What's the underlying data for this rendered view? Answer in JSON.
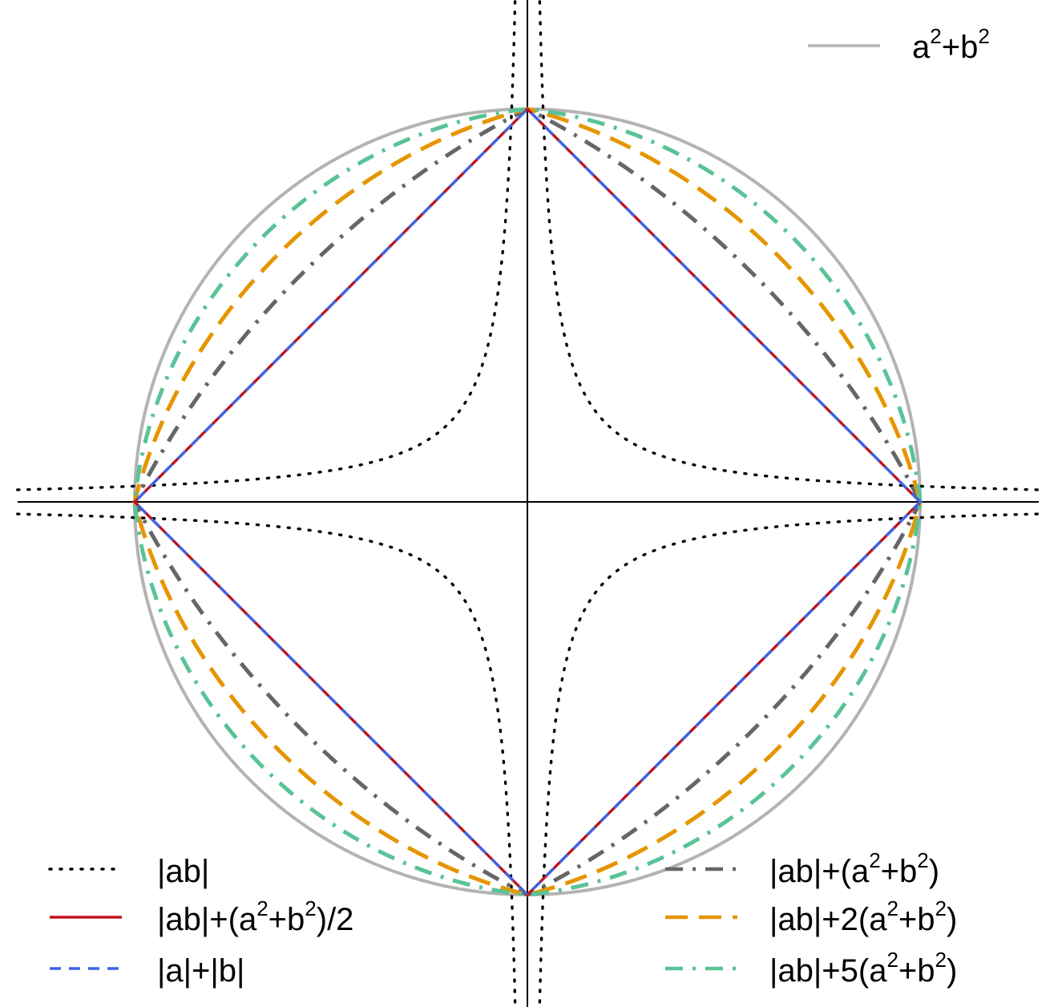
{
  "chart_data": {
    "type": "line",
    "title": "",
    "xlabel": "",
    "ylabel": "",
    "xlim": [
      -1.3,
      1.3
    ],
    "ylim": [
      -1.3,
      1.3
    ],
    "grid": false,
    "axes_through_origin": true,
    "legend_placement": [
      "top-right",
      "bottom-left",
      "bottom-right"
    ],
    "series": [
      {
        "id": "circle",
        "name": "a² + b²",
        "legend_text": {
          "base": "a",
          "sup": "2",
          "mid": "+b",
          "sup2": "2",
          "tail": ""
        },
        "formula": "a^2+b^2 = 1",
        "kind": "superellipse",
        "p": 2,
        "color": "#b3b3b3",
        "style": "solid"
      },
      {
        "id": "ab",
        "name": "|ab|",
        "legend_text": {
          "base": "|ab|",
          "sup": "",
          "mid": "",
          "sup2": "",
          "tail": ""
        },
        "formula": "|ab| = 0.04",
        "kind": "hyperbola",
        "c": 0.04,
        "color": "#000000",
        "style": "dotted"
      },
      {
        "id": "half",
        "name": "|ab| + (a² + b²)/2",
        "legend_text": {
          "base": "|ab|+(a",
          "sup": "2",
          "mid": "+b",
          "sup2": "2",
          "tail": ")/2"
        },
        "formula": "|ab| + (a^2+b^2)/2 = 1/2",
        "kind": "diamond",
        "color": "#c0141e",
        "style": "solid"
      },
      {
        "id": "l1",
        "name": "|a| + |b|",
        "legend_text": {
          "base": "|a|+|b|",
          "sup": "",
          "mid": "",
          "sup2": "",
          "tail": ""
        },
        "formula": "|a| + |b| = 1",
        "kind": "diamond",
        "color": "#3c64e6",
        "style": "dashed"
      },
      {
        "id": "one",
        "name": "|ab| + (a² + b²)",
        "legend_text": {
          "base": "|ab|+(a",
          "sup": "2",
          "mid": "+b",
          "sup2": "2",
          "tail": ")"
        },
        "formula": "|ab| + (a^2+b^2) = 1",
        "kind": "quadric",
        "k": 1,
        "color": "#666666",
        "style": "dashdot"
      },
      {
        "id": "two",
        "name": "|ab| + 2(a² + b²)",
        "legend_text": {
          "base": "|ab|+2(a",
          "sup": "2",
          "mid": "+b",
          "sup2": "2",
          "tail": ")"
        },
        "formula": "|ab| + 2(a^2+b^2) = 2",
        "kind": "quadric",
        "k": 2,
        "color": "#e69500",
        "style": "longdash"
      },
      {
        "id": "five",
        "name": "|ab| + 5(a² + b²)",
        "legend_text": {
          "base": "|ab|+5(a",
          "sup": "2",
          "mid": "+b",
          "sup2": "2",
          "tail": ")"
        },
        "formula": "|ab| + 5(a^2+b^2) = 5",
        "kind": "quadric",
        "k": 5,
        "color": "#5ac396",
        "style": "dashdot"
      }
    ]
  }
}
